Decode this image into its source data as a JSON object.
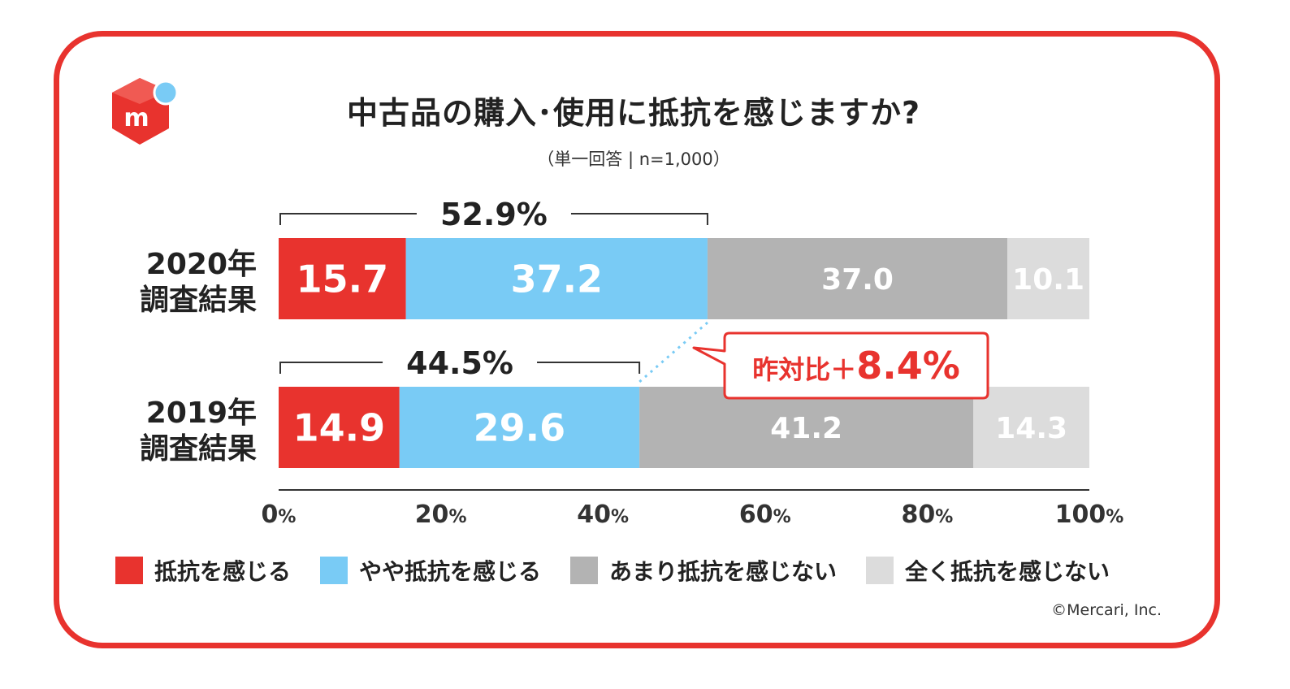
{
  "title": "中古品の購入･使用に抵抗を感じますか?",
  "subtitle": "（単一回答 | n=1,000）",
  "copyright": "©Mercari, Inc.",
  "colors": {
    "frame": "#e8332e",
    "strong": "#e8332e",
    "somewhat": "#79cbf5",
    "not_much": "#b3b3b3",
    "not_at_all": "#dcdcdc",
    "logo_dot": "#79cbf5"
  },
  "logo": {
    "letter": "m",
    "icon": "mercari-cube-icon"
  },
  "callout": {
    "label": "昨対比＋",
    "value": "8.4%"
  },
  "chart_data": {
    "type": "bar",
    "orientation": "horizontal",
    "stacked": true,
    "categories": [
      "2020年\n調査結果",
      "2019年\n調査結果"
    ],
    "series": [
      {
        "name": "抵抗を感じる",
        "values": [
          15.7,
          14.9
        ],
        "labels": [
          "15.7",
          "14.9"
        ]
      },
      {
        "name": "やや抵抗を感じる",
        "values": [
          37.2,
          29.6
        ],
        "labels": [
          "37.2",
          "29.6"
        ]
      },
      {
        "name": "あまり抵抗を感じない",
        "values": [
          37.0,
          41.2
        ],
        "labels": [
          "37.0",
          "41.2"
        ]
      },
      {
        "name": "全く抵抗を感じない",
        "values": [
          10.1,
          14.3
        ],
        "labels": [
          "10.1",
          "14.3"
        ]
      }
    ],
    "bracket_totals": [
      "52.9%",
      "44.5%"
    ],
    "xlim": [
      0,
      100
    ],
    "xticks": [
      0,
      20,
      40,
      60,
      80,
      100
    ],
    "xtick_labels": [
      "0%",
      "20%",
      "40%",
      "60%",
      "80%",
      "100%"
    ],
    "legend_position": "bottom",
    "grid": false
  }
}
